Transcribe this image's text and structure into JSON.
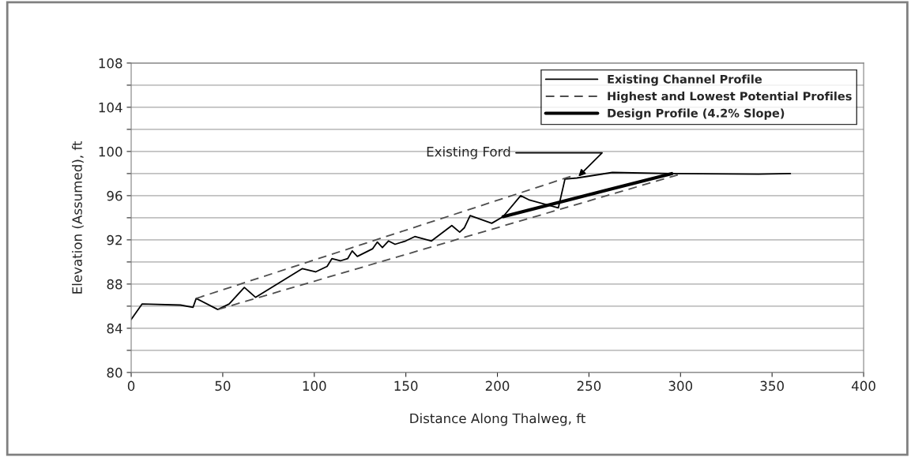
{
  "chart_data": {
    "type": "line",
    "xlabel": "Distance Along Thalweg, ft",
    "ylabel": "Elevation (Assumed), ft",
    "xlim": [
      0,
      400
    ],
    "xticks": [
      0,
      50,
      100,
      150,
      200,
      250,
      300,
      350,
      400
    ],
    "ylim": [
      80,
      108
    ],
    "yticks": [
      80,
      {
        "value": 82,
        "label": null
      },
      84,
      {
        "value": 86,
        "label": null
      },
      88,
      {
        "value": 90,
        "label": null
      },
      92,
      {
        "value": 94,
        "label": null
      },
      96,
      {
        "value": 98,
        "label": null
      },
      100,
      {
        "value": 102,
        "label": null
      },
      104,
      {
        "value": 106,
        "label": null
      },
      108
    ],
    "grid": "y",
    "legend": "top right",
    "marker": "none",
    "annotations": [
      {
        "text": "Existing Ford",
        "x": 243.4,
        "y": 97.6
      }
    ],
    "series": [
      {
        "name": "Existing Channel Profile",
        "color": "#000000",
        "line_style": "solid",
        "x": [
          0,
          6.0,
          26.9,
          33.8,
          35.5,
          47.3,
          53.5,
          61.8,
          67.9,
          93.5,
          100.7,
          107,
          109.6,
          114.2,
          118.2,
          120.7,
          123.5,
          131.9,
          134.4,
          137.2,
          140.5,
          144.1,
          149.9,
          154.9,
          164.0,
          175.1,
          179.4,
          182,
          185.1,
          196.9,
          203.1,
          212.7,
          217.5,
          233.3,
          236.9,
          243.4,
          262.8,
          295.2,
          342.6,
          360
        ],
        "values": [
          84.8,
          86.2,
          86.1,
          85.9,
          86.7,
          85.7,
          86.2,
          87.7,
          86.8,
          89.4,
          89.1,
          89.6,
          90.3,
          90.1,
          90.3,
          91.0,
          90.5,
          91.2,
          91.8,
          91.3,
          91.9,
          91.6,
          91.9,
          92.3,
          91.9,
          93.3,
          92.7,
          93.1,
          94.2,
          93.5,
          94.1,
          96.0,
          95.6,
          94.9,
          97.5,
          97.6,
          98.1,
          98.0,
          97.95,
          98.0
        ]
      },
      {
        "name": "Highest and Lowest Potential Profiles",
        "color": "#4d4d4d",
        "line_style": "dashed",
        "x": [
          35.5,
          243
        ],
        "values": [
          86.7,
          97.9
        ]
      },
      {
        "color": "#4d4d4d",
        "line_style": "dashed",
        "x": [
          47.3,
          300.9
        ],
        "values": [
          85.7,
          98.0
        ]
      },
      {
        "name": "Design Profile (4.2% Slope)",
        "color": "#000000",
        "line_style": "solid",
        "x": [
          203.1,
          295.2
        ],
        "values": [
          94.1,
          98.0
        ]
      }
    ]
  }
}
